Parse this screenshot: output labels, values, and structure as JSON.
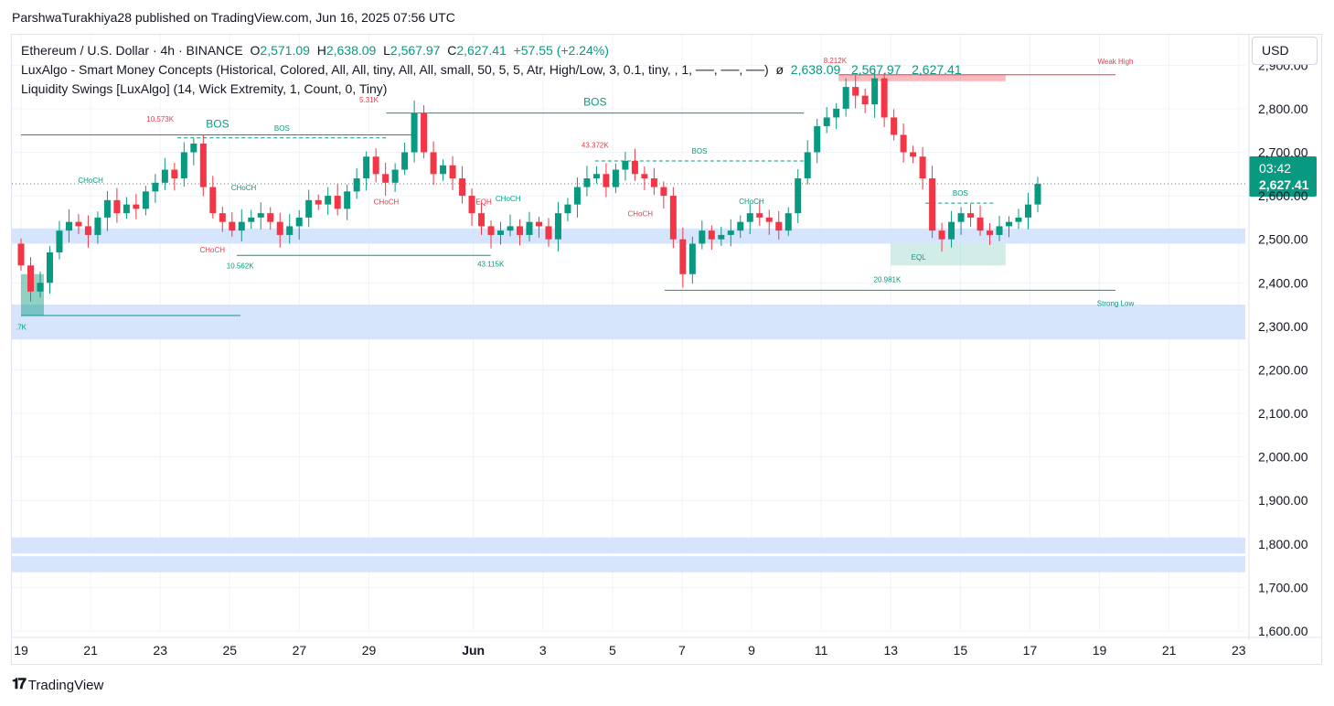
{
  "attribution": "ParshwaTurakhiya28 published on TradingView.com, Jun 16, 2025 07:56 UTC",
  "legend": {
    "symbol": "Ethereum / U.S. Dollar · 4h · BINANCE",
    "o_label": "O",
    "o_value": "2,571.09",
    "h_label": "H",
    "h_value": "2,638.09",
    "l_label": "L",
    "l_value": "2,567.97",
    "c_label": "C",
    "c_value": "2,627.41",
    "change": "+57.55 (+2.24%)",
    "indicator1": "LuxAlgo - Smart Money Concepts (Historical, Colored, All, All, tiny, All, All, small, 50, 5, 5, Atr, High/Low, 3, 0.1, tiny, , 1, ──, ──, ──)",
    "indicator1_symbol": "ø",
    "indicator1_values": "2,638.09   2,567.97   2,627.41",
    "indicator2": "Liquidity Swings [LuxAlgo] (14, Wick Extremity, 1, Count, 0, Tiny)"
  },
  "currency_button": "USD",
  "footer_logo": "TradingView",
  "colors": {
    "up": "#089981",
    "down": "#f23645",
    "zone": "#cfe0fb",
    "text": "#131722"
  },
  "chart_data": {
    "type": "candlestick",
    "timeframe": "4h",
    "ylim": [
      1600,
      2970
    ],
    "y_ticks": [
      1600,
      1700,
      1800,
      1900,
      2000,
      2100,
      2200,
      2300,
      2400,
      2500,
      2600,
      2700,
      2800,
      2900
    ],
    "y_tick_labels": [
      "1,600.00",
      "1,700.00",
      "1,800.00",
      "1,900.00",
      "2,000.00",
      "2,100.00",
      "2,200.00",
      "2,300.00",
      "2,400.00",
      "2,500.00",
      "2,600.00",
      "2,700.00",
      "2,800.00",
      "2,900.00"
    ],
    "x_ticks": [
      {
        "day": 0,
        "label": "19"
      },
      {
        "day": 2,
        "label": "21"
      },
      {
        "day": 4,
        "label": "23"
      },
      {
        "day": 6,
        "label": "25"
      },
      {
        "day": 8,
        "label": "27"
      },
      {
        "day": 10,
        "label": "29"
      },
      {
        "day": 13,
        "label": "Jun",
        "bold": true
      },
      {
        "day": 15,
        "label": "3"
      },
      {
        "day": 17,
        "label": "5"
      },
      {
        "day": 19,
        "label": "7"
      },
      {
        "day": 21,
        "label": "9"
      },
      {
        "day": 23,
        "label": "11"
      },
      {
        "day": 25,
        "label": "13"
      },
      {
        "day": 27,
        "label": "15"
      },
      {
        "day": 29,
        "label": "17"
      },
      {
        "day": 31,
        "label": "19"
      },
      {
        "day": 33,
        "label": "21"
      },
      {
        "day": 35,
        "label": "23"
      }
    ],
    "last_price": "2,627.41",
    "countdown": "03:42",
    "closes": [
      2440,
      2380,
      2400,
      2470,
      2520,
      2540,
      2530,
      2510,
      2550,
      2590,
      2560,
      2580,
      2570,
      2610,
      2630,
      2660,
      2640,
      2700,
      2720,
      2620,
      2560,
      2540,
      2520,
      2540,
      2550,
      2560,
      2540,
      2510,
      2530,
      2550,
      2590,
      2580,
      2600,
      2570,
      2610,
      2640,
      2690,
      2650,
      2630,
      2660,
      2700,
      2790,
      2700,
      2650,
      2670,
      2640,
      2600,
      2560,
      2530,
      2510,
      2520,
      2530,
      2510,
      2540,
      2530,
      2500,
      2560,
      2580,
      2620,
      2640,
      2650,
      2620,
      2660,
      2680,
      2650,
      2640,
      2620,
      2600,
      2500,
      2420,
      2490,
      2520,
      2500,
      2510,
      2520,
      2540,
      2560,
      2550,
      2540,
      2520,
      2560,
      2640,
      2700,
      2760,
      2780,
      2800,
      2850,
      2830,
      2810,
      2870,
      2780,
      2740,
      2700,
      2690,
      2640,
      2520,
      2500,
      2540,
      2560,
      2550,
      2520,
      2510,
      2530,
      2540,
      2550,
      2580,
      2627.41
    ],
    "bos_levels": [
      {
        "label": "BOS",
        "value": 2740
      },
      {
        "label": "BOS",
        "value": 2790
      },
      {
        "label": "BOS",
        "value": 2733
      },
      {
        "label": "BOS",
        "value": 2680
      },
      {
        "label": "BOS",
        "value": 2583
      }
    ],
    "choch_labels": [
      "CHoCH",
      "CHoCH",
      "CHoCH",
      "CHoCH",
      "CHoCH",
      "CHoCH",
      "CHoCH"
    ],
    "liquidity_labels": [
      "10.573K",
      "5.31K",
      "43.372K",
      "8.212K",
      "10.562K",
      "43.115K",
      "20.981K",
      ".7K"
    ],
    "eq_labels": [
      "EQH",
      "EQL"
    ],
    "swing_labels": [
      "Weak High",
      "Strong Low"
    ],
    "zones": [
      {
        "from": 2270,
        "to": 2350
      },
      {
        "from": 1735,
        "to": 1815
      },
      {
        "from": 2490,
        "to": 2525
      }
    ],
    "grid": true,
    "legend_position": "top-left"
  }
}
